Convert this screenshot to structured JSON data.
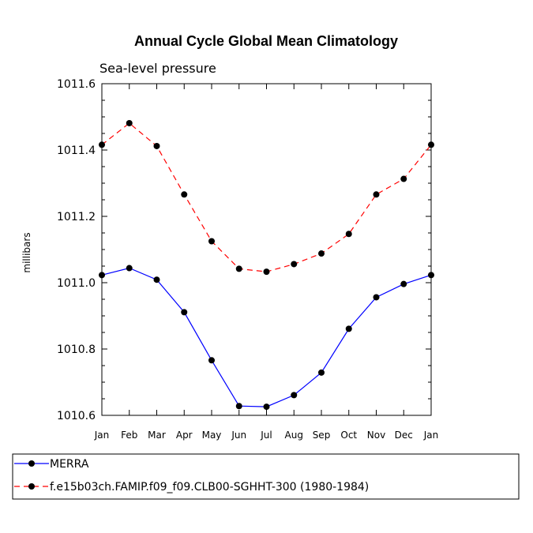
{
  "chart_data": {
    "type": "line",
    "title": "Annual Cycle Global Mean Climatology",
    "subtitle": "Sea-level pressure",
    "xlabel": "",
    "ylabel": "millibars",
    "categories": [
      "Jan",
      "Feb",
      "Mar",
      "Apr",
      "May",
      "Jun",
      "Jul",
      "Aug",
      "Sep",
      "Oct",
      "Nov",
      "Dec",
      "Jan"
    ],
    "ylim": [
      1010.6,
      1011.6
    ],
    "yticks": [
      "1010.6",
      "1010.8",
      "1011.0",
      "1011.2",
      "1011.4",
      "1011.6"
    ],
    "legend_position": "bottom",
    "series": [
      {
        "name": "MERRA",
        "color": "#0000ff",
        "dash": "solid",
        "values": [
          1011.023,
          1011.044,
          1011.009,
          1010.911,
          1010.766,
          1010.628,
          1010.626,
          1010.661,
          1010.729,
          1010.861,
          1010.956,
          1010.996,
          1011.023
        ]
      },
      {
        "name": "f.e15b03ch.FAMIP.f09_f09.CLB00-SGHHT-300 (1980-1984)",
        "color": "#ff0000",
        "dash": "dashed",
        "values": [
          1011.416,
          1011.481,
          1011.412,
          1011.266,
          1011.125,
          1011.042,
          1011.033,
          1011.056,
          1011.088,
          1011.147,
          1011.266,
          1011.313,
          1011.416
        ]
      }
    ]
  }
}
